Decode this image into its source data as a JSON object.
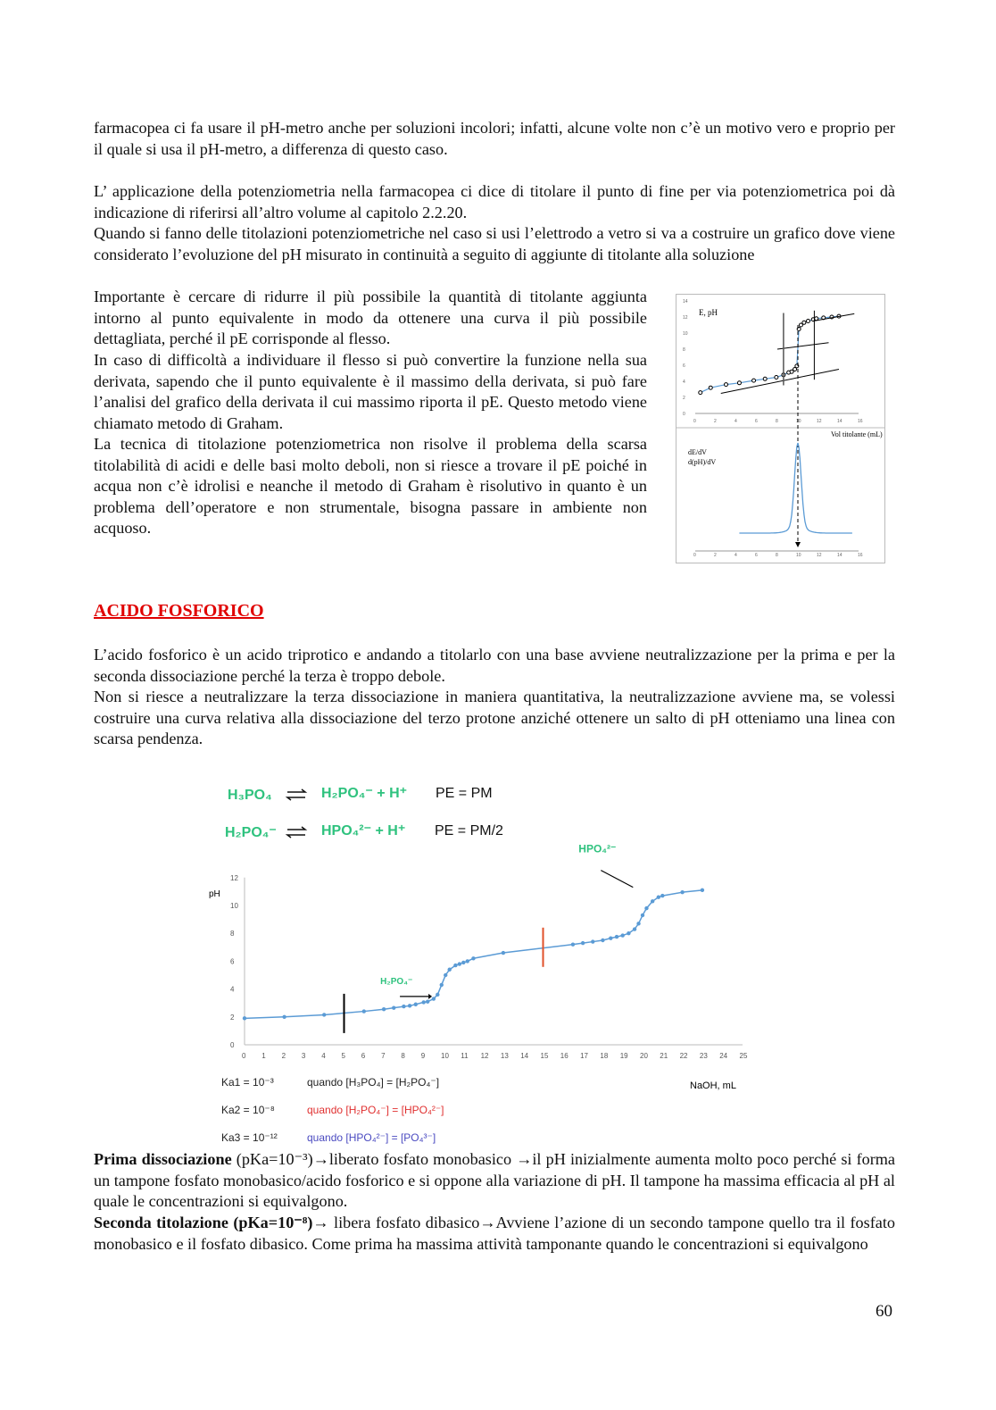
{
  "paragraphs_top": [
    "farmacopea ci fa usare il pH-metro anche per soluzioni incolori; infatti, alcune volte non c’è un motivo vero e proprio per il quale si usa il pH-metro, a differenza di questo caso.",
    "L’ applicazione della potenziometria nella farmacopea ci dice di titolare il punto di fine per via potenziometrica poi dà indicazione di riferirsi all’altro volume al capitolo 2.2.20.",
    "Quando si fanno delle titolazioni potenziometriche nel caso si usi l’elettrodo a vetro si va a costruire un grafico dove viene considerato l’evoluzione del pH misurato in continuità a seguito di aggiunte di titolante alla soluzione"
  ],
  "paragraphs_side": [
    "Importante è cercare di ridurre il più possibile la quantità di titolante aggiunta intorno al punto equivalente in modo da ottenere una curva il più possibile dettagliata, perché il pE corrisponde al flesso.",
    "In caso di difficoltà a individuare il flesso si può convertire la funzione nella sua derivata, sapendo che il punto equivalente è il massimo della derivata, si può fare l’analisi del grafico della derivata il cui massimo riporta il pE. Questo metodo viene chiamato metodo di Graham.",
    "La tecnica di titolazione potenziometrica non risolve il problema della scarsa titolabilità di acidi e delle basi molto deboli, non si riesce a trovare il pE poiché in acqua non c’è idrolisi e neanche il metodo di Graham è risolutivo in quanto è un problema dell’operatore e non strumentale, bisogna passare in ambiente non acquoso."
  ],
  "small_chart": {
    "type": "line",
    "top_label": "E, pH",
    "x_label": "Vol titolante (mL)",
    "bottom_label_1": "dE/dV",
    "bottom_label_2": "d(pH)/dV",
    "y_ticks": [
      "0",
      "2",
      "4",
      "6",
      "8",
      "10",
      "12",
      "14"
    ],
    "x_ticks": [
      "0",
      "2",
      "4",
      "6",
      "8",
      "10",
      "12",
      "14",
      "16"
    ],
    "x": [
      0.5,
      1.5,
      3,
      4.3,
      5.7,
      6.8,
      7.9,
      8.6,
      9.1,
      9.4,
      9.7,
      9.9,
      10.1,
      10.3,
      10.6,
      11,
      11.5,
      11.8,
      12.5,
      13.3,
      14
    ],
    "y": [
      2.6,
      3.2,
      3.6,
      3.8,
      4.1,
      4.3,
      4.5,
      4.8,
      5.1,
      5.2,
      5.5,
      5.9,
      10.5,
      11.0,
      11.3,
      11.5,
      11.7,
      11.8,
      11.9,
      12.0,
      12.1
    ],
    "equivalence_x": 10
  },
  "section_title": "ACIDO FOSFORICO",
  "paragraphs_mid": [
    "L’acido fosforico è un acido triprotico e andando a titolarlo con una base avviene neutralizzazione per la prima e per la seconda dissociazione perché la terza è troppo debole.",
    "Non si riesce a neutralizzare la terza dissociazione in maniera quantitativa, la neutralizzazione avviene ma, se volessi costruire una curva relativa alla dissociazione del terzo protone anziché ottenere un salto di pH otteniamo una linea con scarsa pendenza."
  ],
  "equations": [
    {
      "left": "H₃PO₄",
      "right": "H₂PO₄⁻ + H⁺",
      "pe": "PE = PM"
    },
    {
      "left": "H₂PO₄⁻",
      "right": "HPO₄²⁻ + H⁺",
      "pe": "PE = PM/2"
    }
  ],
  "chart_data": {
    "type": "line",
    "ylabel": "pH",
    "xlabel": "NaOH, mL",
    "xlim": [
      0,
      25
    ],
    "ylim": [
      0,
      12
    ],
    "y_ticks": [
      "0",
      "2",
      "4",
      "6",
      "8",
      "10",
      "12"
    ],
    "x_ticks": [
      "0",
      "1",
      "2",
      "3",
      "4",
      "5",
      "6",
      "7",
      "8",
      "9",
      "10",
      "11",
      "12",
      "13",
      "14",
      "15",
      "16",
      "17",
      "18",
      "19",
      "20",
      "21",
      "22",
      "23",
      "24",
      "25"
    ],
    "x": [
      0,
      2,
      4,
      6,
      7,
      7.5,
      8,
      8.3,
      8.6,
      9,
      9.2,
      9.5,
      9.7,
      9.9,
      10.1,
      10.3,
      10.6,
      10.8,
      11,
      11.2,
      11.5,
      13,
      16.5,
      17,
      17.5,
      18,
      18.4,
      18.7,
      19,
      19.3,
      19.6,
      19.8,
      20,
      20.2,
      20.5,
      20.8,
      21,
      22,
      23
    ],
    "y": [
      1.9,
      2.0,
      2.15,
      2.4,
      2.55,
      2.65,
      2.75,
      2.8,
      2.9,
      3.05,
      3.1,
      3.3,
      3.6,
      4.3,
      5.0,
      5.4,
      5.7,
      5.8,
      5.9,
      6.0,
      6.2,
      6.6,
      7.2,
      7.3,
      7.4,
      7.5,
      7.65,
      7.75,
      7.85,
      8.0,
      8.3,
      8.7,
      9.3,
      9.8,
      10.3,
      10.6,
      10.7,
      10.95,
      11.1
    ],
    "annotations": [
      {
        "text": "H₂PO₄⁻",
        "x": 9.6,
        "y": 3.6
      },
      {
        "text": "HPO₄²⁻",
        "x": 19.7,
        "y": 9.0
      }
    ],
    "markers": [
      {
        "x": 5,
        "color": "#000000"
      },
      {
        "x": 15,
        "color": "#e0502a"
      }
    ],
    "series_color": "#5b9bd5",
    "ka": [
      {
        "k": "Ka1 = 10⁻³",
        "when": "quando [H₃PO₄] = [H₂PO₄⁻]",
        "color": "#222222"
      },
      {
        "k": "Ka2 = 10⁻⁸",
        "when": "quando [H₂PO₄⁻] = [HPO₄²⁻]",
        "color": "#e03030"
      },
      {
        "k": "Ka3 = 10⁻¹²",
        "when": "quando [HPO₄²⁻] = [PO₄³⁻]",
        "color": "#4a4ac0"
      }
    ]
  },
  "bottom": {
    "p1_bold": "Prima dissociazione",
    "p1": " (pKa=10⁻³)→liberato fosfato monobasico →il pH inizialmente aumenta molto poco perché si forma un tampone fosfato monobasico/acido fosforico e si oppone alla variazione di pH. Il tampone ha massima efficacia al pH al quale le concentrazioni si equivalgono.",
    "p2_bold": "Seconda titolazione (pKa=10⁻⁸)→",
    "p2": " libera fosfato dibasico→Avviene l’azione di un secondo tampone quello tra il fosfato monobasico e il fosfato dibasico. Come prima ha massima attività tamponante quando le concentrazioni si equivalgono"
  },
  "page_number": "60"
}
